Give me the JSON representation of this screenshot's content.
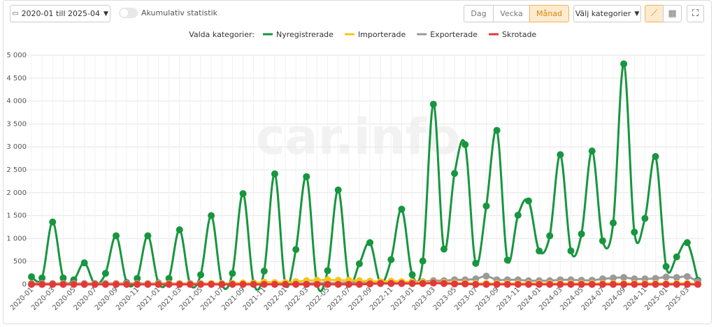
{
  "controls": {
    "date_range": "2020-01 till 2025-04",
    "toggle_label": "Akumulativ statistik",
    "period_buttons": [
      "Dag",
      "Vecka",
      "Månad"
    ],
    "active_period": 2,
    "category_dropdown": "Välj kategorier"
  },
  "chart_data": {
    "type": "line",
    "legend_title": "Valda kategorier:",
    "watermark": "car.info",
    "categories": [
      "2020-01",
      null,
      "2020-03",
      null,
      "2020-05",
      null,
      "2020-07",
      null,
      "2020-09",
      null,
      "2020-11",
      null,
      "2021-01",
      null,
      "2021-03",
      null,
      "2021-05",
      null,
      "2021-07",
      null,
      "2021-09",
      null,
      "2021-11",
      null,
      "2022-01",
      null,
      "2022-03",
      null,
      "2022-05",
      null,
      "2022-07",
      null,
      "2022-09",
      null,
      "2022-11",
      null,
      "2023-01",
      null,
      "2023-03",
      null,
      "2023-05",
      null,
      "2023-07",
      null,
      "2023-09",
      null,
      "2023-11",
      null,
      "2024-01",
      null,
      "2024-03",
      null,
      "2024-05",
      null,
      "2024-07",
      null,
      "2024-09",
      null,
      "2024-11",
      null,
      "2025-01",
      null,
      "2025-03",
      null
    ],
    "series": [
      {
        "name": "Nyregistrerade",
        "color": "#17963f",
        "values": [
          165,
          140,
          1360,
          140,
          100,
          470,
          10,
          240,
          1060,
          40,
          130,
          1060,
          30,
          130,
          1190,
          10,
          210,
          1500,
          10,
          240,
          1980,
          30,
          290,
          2410,
          10,
          760,
          2350,
          10,
          300,
          2060,
          80,
          450,
          910,
          30,
          540,
          1640,
          210,
          510,
          3930,
          770,
          2420,
          3050,
          460,
          1710,
          3360,
          530,
          1510,
          1820,
          730,
          1060,
          2830,
          730,
          1100,
          2910,
          950,
          1340,
          4810,
          1140,
          1440,
          2790,
          390,
          600,
          910,
          90
        ]
      },
      {
        "name": "Importerade",
        "color": "#f6c41c",
        "values": [
          5,
          5,
          5,
          5,
          5,
          5,
          5,
          5,
          10,
          5,
          5,
          10,
          10,
          10,
          15,
          10,
          15,
          20,
          15,
          20,
          30,
          25,
          50,
          40,
          40,
          60,
          80,
          90,
          100,
          90,
          90,
          80,
          70,
          60,
          70,
          60,
          50,
          50,
          40,
          40,
          30,
          30,
          20,
          20,
          20,
          20,
          20,
          20,
          20,
          20,
          20,
          20,
          20,
          20,
          20,
          20,
          20,
          20,
          20,
          20,
          20,
          20,
          20,
          10
        ]
      },
      {
        "name": "Exporterade",
        "color": "#9a9a9a",
        "values": [
          20,
          20,
          20,
          20,
          20,
          20,
          20,
          20,
          20,
          20,
          20,
          20,
          20,
          20,
          20,
          20,
          20,
          20,
          20,
          20,
          20,
          20,
          20,
          20,
          20,
          20,
          20,
          30,
          30,
          30,
          40,
          40,
          40,
          40,
          50,
          50,
          60,
          60,
          80,
          80,
          100,
          100,
          120,
          180,
          100,
          100,
          100,
          80,
          80,
          80,
          100,
          100,
          90,
          90,
          120,
          140,
          150,
          120,
          120,
          130,
          160,
          150,
          170,
          60
        ]
      },
      {
        "name": "Skrotade",
        "color": "#e2383b",
        "values": [
          0,
          0,
          0,
          0,
          0,
          0,
          0,
          0,
          0,
          0,
          0,
          0,
          0,
          0,
          0,
          0,
          0,
          0,
          0,
          0,
          0,
          0,
          0,
          0,
          0,
          0,
          0,
          0,
          0,
          0,
          0,
          0,
          10,
          20,
          20,
          20,
          20,
          20,
          30,
          20,
          10,
          10,
          0,
          0,
          0,
          0,
          0,
          0,
          0,
          0,
          0,
          0,
          0,
          0,
          0,
          0,
          0,
          0,
          0,
          0,
          0,
          0,
          0,
          0
        ]
      }
    ],
    "ylim": [
      0,
      5000
    ],
    "yticks": [
      0,
      500,
      {
        "value": 1000,
        "label": "1 000"
      },
      {
        "value": 1500,
        "label": "1 500"
      },
      {
        "value": 2000,
        "label": "2 000"
      },
      {
        "value": 2500,
        "label": "2 500"
      },
      {
        "value": 3000,
        "label": "3 000"
      },
      {
        "value": 3500,
        "label": "3 500"
      },
      {
        "value": 4000,
        "label": "4 000"
      },
      {
        "value": 4500,
        "label": "4 500"
      },
      {
        "value": 5000,
        "label": "5 000"
      }
    ],
    "grid": true
  }
}
